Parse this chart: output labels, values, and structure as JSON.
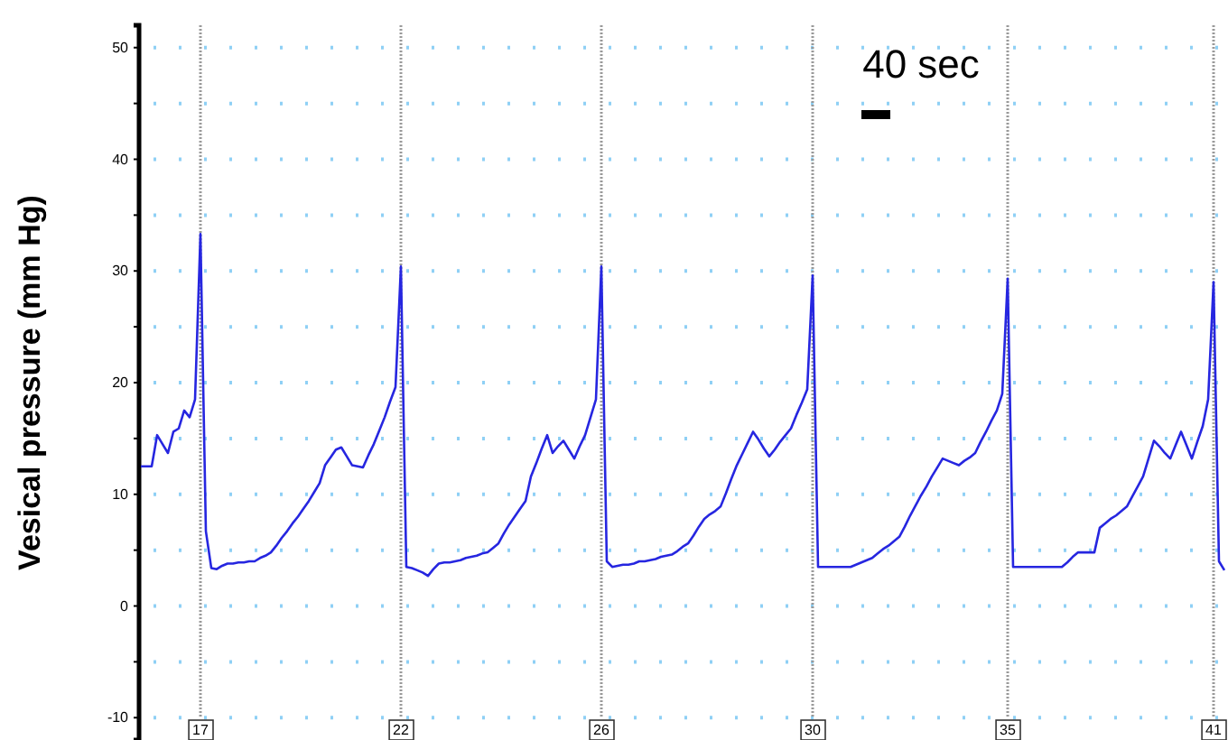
{
  "chart_data": {
    "type": "line",
    "ylabel": "Vesical pressure (mm Hg)",
    "categories": [
      null,
      null,
      null,
      null,
      null,
      null,
      null,
      null,
      null,
      null,
      null,
      "17",
      null,
      null,
      null,
      null,
      null,
      null,
      null,
      null,
      null,
      null,
      null,
      null,
      null,
      null,
      null,
      null,
      null,
      null,
      null,
      null,
      null,
      null,
      null,
      null,
      null,
      null,
      null,
      null,
      null,
      null,
      null,
      null,
      null,
      null,
      null,
      null,
      "22",
      null,
      null,
      null,
      null,
      null,
      null,
      null,
      null,
      null,
      null,
      null,
      null,
      null,
      null,
      null,
      null,
      null,
      null,
      null,
      null,
      null,
      null,
      null,
      null,
      null,
      null,
      null,
      null,
      null,
      null,
      null,
      null,
      null,
      null,
      null,
      null,
      "26",
      null,
      null,
      null,
      null,
      null,
      null,
      null,
      null,
      null,
      null,
      null,
      null,
      null,
      null,
      null,
      null,
      null,
      null,
      null,
      null,
      null,
      null,
      null,
      null,
      null,
      null,
      null,
      null,
      null,
      null,
      null,
      null,
      null,
      null,
      null,
      null,
      null,
      null,
      "30",
      null,
      null,
      null,
      null,
      null,
      null,
      null,
      null,
      null,
      null,
      null,
      null,
      null,
      null,
      null,
      null,
      null,
      null,
      null,
      null,
      null,
      null,
      null,
      null,
      null,
      null,
      null,
      null,
      null,
      null,
      null,
      null,
      null,
      null,
      null,
      "35",
      null,
      null,
      null,
      null,
      null,
      null,
      null,
      null,
      null,
      null,
      null,
      null,
      null,
      null,
      null,
      null,
      null,
      null,
      null,
      null,
      null,
      null,
      null,
      null,
      null,
      null,
      null,
      null,
      null,
      null,
      null,
      null,
      null,
      null,
      null,
      null,
      null,
      "41",
      null,
      null
    ],
    "ylim": [
      -12,
      52
    ],
    "yticks": [
      -10,
      {
        "value": -5,
        "label": null
      },
      0,
      {
        "value": 5,
        "label": null
      },
      10,
      {
        "value": 15,
        "label": null
      },
      20,
      {
        "value": 25,
        "label": null
      },
      30,
      {
        "value": 35,
        "label": null
      },
      40,
      {
        "value": 45,
        "label": null
      },
      50
    ],
    "grid": true,
    "marker": "none",
    "line_style": "solid",
    "annotations": [
      "40 sec"
    ],
    "series": [
      {
        "color": "#2626e0",
        "values": [
          12.5,
          12.5,
          12.5,
          15.3,
          14.5,
          13.7,
          15.6,
          15.9,
          17.5,
          16.9,
          18.5,
          33.3,
          6.7,
          3.4,
          3.3,
          3.6,
          3.8,
          3.8,
          3.9,
          3.9,
          4.0,
          4.0,
          4.3,
          4.5,
          4.8,
          5.4,
          6.1,
          6.7,
          7.4,
          8.0,
          8.7,
          9.4,
          10.2,
          11.0,
          12.6,
          13.3,
          14.0,
          14.2,
          13.4,
          12.6,
          12.5,
          12.4,
          13.5,
          14.5,
          15.7,
          16.9,
          18.3,
          19.6,
          30.4,
          3.5,
          3.4,
          3.2,
          3.0,
          2.7,
          3.3,
          3.8,
          3.9,
          3.9,
          4.0,
          4.1,
          4.3,
          4.4,
          4.5,
          4.7,
          4.8,
          5.2,
          5.6,
          6.5,
          7.3,
          8.0,
          8.7,
          9.4,
          11.6,
          12.8,
          14.1,
          15.3,
          13.7,
          14.3,
          14.8,
          14.0,
          13.2,
          14.3,
          15.3,
          16.9,
          18.5,
          30.4,
          4.0,
          3.5,
          3.6,
          3.7,
          3.7,
          3.8,
          4.0,
          4.0,
          4.1,
          4.2,
          4.4,
          4.5,
          4.6,
          4.9,
          5.3,
          5.6,
          6.3,
          7.1,
          7.8,
          8.2,
          8.5,
          8.9,
          10.1,
          11.4,
          12.6,
          13.6,
          14.6,
          15.6,
          14.9,
          14.1,
          13.4,
          14.0,
          14.7,
          15.3,
          15.9,
          17.1,
          18.2,
          19.4,
          29.6,
          3.5,
          3.5,
          3.5,
          3.5,
          3.5,
          3.5,
          3.5,
          3.7,
          3.9,
          4.1,
          4.3,
          4.7,
          5.1,
          5.4,
          5.8,
          6.2,
          7.1,
          8.1,
          9.0,
          9.9,
          10.7,
          11.6,
          12.4,
          13.2,
          13.0,
          12.8,
          12.6,
          13.0,
          13.3,
          13.7,
          14.7,
          15.6,
          16.6,
          17.5,
          19.0,
          29.3,
          3.5,
          3.5,
          3.5,
          3.5,
          3.5,
          3.5,
          3.5,
          3.5,
          3.5,
          3.5,
          3.9,
          4.4,
          4.8,
          4.8,
          4.8,
          4.8,
          7.0,
          7.4,
          7.8,
          8.1,
          8.5,
          8.9,
          9.8,
          10.7,
          11.6,
          13.2,
          14.8,
          14.3,
          13.7,
          13.2,
          14.4,
          15.6,
          14.4,
          13.2,
          14.7,
          16.1,
          18.5,
          29.0,
          4.0,
          3.2
        ]
      }
    ]
  }
}
